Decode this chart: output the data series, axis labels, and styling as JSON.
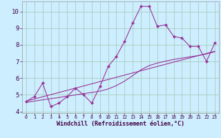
{
  "xlabel": "Windchill (Refroidissement éolien,°C)",
  "bg_color": "#cceeff",
  "grid_color": "#aaccbb",
  "line_color": "#993399",
  "x_data": [
    0,
    1,
    2,
    3,
    4,
    5,
    6,
    7,
    8,
    9,
    10,
    11,
    12,
    13,
    14,
    15,
    16,
    17,
    18,
    19,
    20,
    21,
    22,
    23
  ],
  "y_main": [
    4.6,
    4.9,
    5.7,
    4.3,
    4.5,
    4.9,
    5.4,
    5.0,
    4.5,
    5.5,
    6.7,
    7.3,
    8.2,
    9.3,
    10.3,
    10.3,
    9.1,
    9.2,
    8.5,
    8.4,
    7.9,
    7.9,
    7.0,
    8.1
  ],
  "y_line1": [
    4.62,
    4.75,
    4.88,
    5.01,
    5.14,
    5.27,
    5.4,
    5.53,
    5.66,
    5.79,
    5.92,
    6.05,
    6.18,
    6.31,
    6.44,
    6.57,
    6.7,
    6.83,
    6.96,
    7.09,
    7.22,
    7.35,
    7.48,
    7.61
  ],
  "y_line2": [
    4.55,
    4.62,
    4.7,
    4.77,
    4.84,
    4.92,
    4.99,
    5.07,
    5.14,
    5.22,
    5.35,
    5.55,
    5.82,
    6.15,
    6.5,
    6.75,
    6.9,
    7.02,
    7.12,
    7.2,
    7.28,
    7.35,
    7.45,
    7.58
  ],
  "ylim": [
    3.9,
    10.6
  ],
  "xlim": [
    -0.5,
    23.5
  ],
  "yticks": [
    4,
    5,
    6,
    7,
    8,
    9,
    10
  ],
  "xticks": [
    0,
    1,
    2,
    3,
    4,
    5,
    6,
    7,
    8,
    9,
    10,
    11,
    12,
    13,
    14,
    15,
    16,
    17,
    18,
    19,
    20,
    21,
    22,
    23
  ],
  "tick_color": "#440044",
  "xlabel_fontsize": 6.0,
  "ylabel_fontsize": 6.5,
  "xtick_fontsize": 4.8,
  "ytick_fontsize": 6.5,
  "marker_size": 2.2,
  "line_width": 0.8
}
